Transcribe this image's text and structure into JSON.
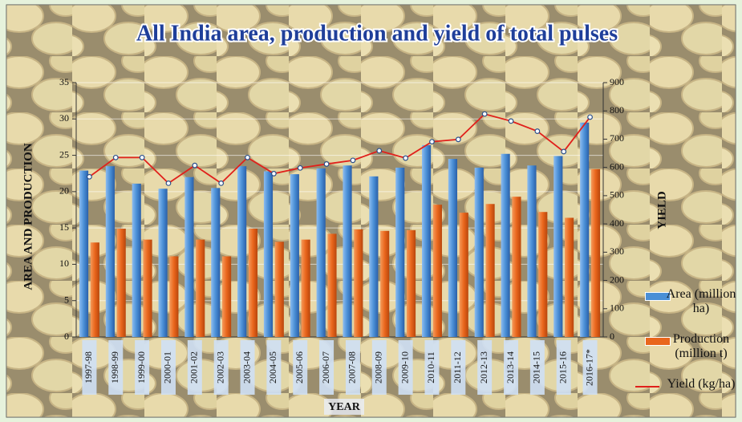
{
  "chart_data": {
    "type": "bar",
    "title": "All India area, production and yield of total pulses",
    "y_label": "AREA AND PRODUCTION",
    "y2_label": "YIELD",
    "x_label": "YEAR",
    "categories": [
      "1997-98",
      "1998-99",
      "1999-00",
      "2000-01",
      "2001-02",
      "2002-03",
      "2003-04",
      "2004-05",
      "2005-06",
      "2006-07",
      "2007-08",
      "2008-09",
      "2009-10",
      "2010-11",
      "2011-12",
      "2012-13",
      "2013-14",
      "2014-15",
      "2015-16",
      "2016-17*"
    ],
    "series": [
      {
        "name": "Area (million ha)",
        "type": "bar",
        "color": "#4a8fd6",
        "values": [
          22.9,
          23.5,
          21.1,
          20.4,
          22.0,
          20.5,
          23.5,
          22.8,
          22.4,
          23.2,
          23.6,
          22.1,
          23.3,
          26.4,
          24.5,
          23.3,
          25.2,
          23.6,
          24.9,
          29.5
        ]
      },
      {
        "name": "Production (million t)",
        "type": "bar",
        "color": "#e9661c",
        "values": [
          13.0,
          14.9,
          13.4,
          11.1,
          13.4,
          11.1,
          14.9,
          13.1,
          13.4,
          14.2,
          14.8,
          14.6,
          14.7,
          18.2,
          17.1,
          18.3,
          19.3,
          17.2,
          16.4,
          23.1
        ]
      },
      {
        "name": "Yield (kg/ha)",
        "type": "line",
        "axis": "y2",
        "color": "#e0201b",
        "values": [
          567,
          635,
          635,
          544,
          607,
          544,
          635,
          578,
          598,
          612,
          625,
          659,
          633,
          691,
          699,
          789,
          764,
          728,
          656,
          778
        ]
      }
    ],
    "ylim": [
      0,
      35
    ],
    "yticks": [
      0,
      5,
      10,
      15,
      20,
      25,
      30,
      35
    ],
    "y2lim": [
      0,
      900
    ],
    "y2ticks": [
      0,
      100,
      200,
      300,
      400,
      500,
      600,
      700,
      800,
      900
    ],
    "grid": true
  }
}
